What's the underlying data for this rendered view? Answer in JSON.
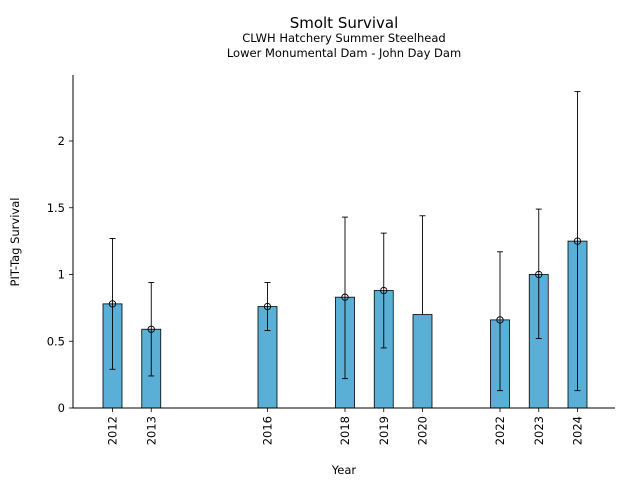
{
  "chart_data": {
    "type": "bar",
    "title": "Smolt Survival",
    "subtitle_lines": [
      "CLWH Hatchery Summer Steelhead",
      "Lower Monumental Dam - John Day Dam"
    ],
    "xlabel": "Year",
    "ylabel": "PIT-Tag Survival",
    "x_range": [
      2010.5,
      2025.0
    ],
    "ylim": [
      0,
      2.5
    ],
    "yticks": [
      0,
      0.5,
      1,
      1.5,
      2
    ],
    "ytick_labels": [
      "0",
      "0.5",
      "1",
      "1.5",
      "2"
    ],
    "bar_color": "#5aafd6",
    "grid": false,
    "points": [
      {
        "year": 2012,
        "label": "2012",
        "value": 0.78,
        "lower": 0.29,
        "upper": 1.27,
        "marker": true
      },
      {
        "year": 2013,
        "label": "2013",
        "value": 0.59,
        "lower": 0.24,
        "upper": 0.94,
        "marker": true
      },
      {
        "year": 2016,
        "label": "2016",
        "value": 0.76,
        "lower": 0.58,
        "upper": 0.94,
        "marker": true
      },
      {
        "year": 2018,
        "label": "2018",
        "value": 0.83,
        "lower": 0.22,
        "upper": 1.43,
        "marker": true
      },
      {
        "year": 2019,
        "label": "2019",
        "value": 0.88,
        "lower": 0.45,
        "upper": 1.31,
        "marker": true
      },
      {
        "year": 2020,
        "label": "2020",
        "value": 0.7,
        "lower": null,
        "upper": 1.44,
        "marker": false
      },
      {
        "year": 2022,
        "label": "2022",
        "value": 0.66,
        "lower": 0.13,
        "upper": 1.17,
        "marker": true
      },
      {
        "year": 2023,
        "label": "2023",
        "value": 1.0,
        "lower": 0.52,
        "upper": 1.49,
        "marker": true
      },
      {
        "year": 2024,
        "label": "2024",
        "value": 1.25,
        "lower": 0.13,
        "upper": 2.37,
        "marker": true
      }
    ]
  }
}
